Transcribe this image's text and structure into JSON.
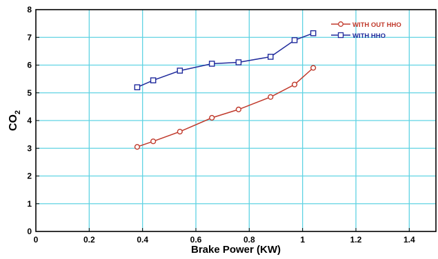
{
  "chart_data": {
    "type": "line",
    "title": "",
    "xlabel": "Brake Power (KW)",
    "ylabel": "CO",
    "ylabel_subscript": "2",
    "xlim": [
      0,
      1.5
    ],
    "ylim": [
      0,
      8
    ],
    "xticks": [
      0,
      0.2,
      0.4,
      0.6,
      0.8,
      1,
      1.2,
      1.4
    ],
    "xtick_labels": [
      "0",
      "0.2",
      "0.4",
      "0.6",
      "0.8",
      "1",
      "1.2",
      "1.4"
    ],
    "yticks": [
      0,
      1,
      2,
      3,
      4,
      5,
      6,
      7,
      8
    ],
    "ytick_labels": [
      "0",
      "1",
      "2",
      "3",
      "4",
      "5",
      "6",
      "7",
      "8"
    ],
    "grid": true,
    "grid_color": "#5fd3e3",
    "legend_position": "top-right",
    "series": [
      {
        "name": "WITH OUT HHO",
        "color": "#c0392b",
        "marker": "circle",
        "x": [
          0.38,
          0.44,
          0.54,
          0.66,
          0.76,
          0.88,
          0.97,
          1.04
        ],
        "y": [
          3.05,
          3.25,
          3.6,
          4.1,
          4.4,
          4.85,
          5.3,
          5.9
        ]
      },
      {
        "name": "WITH HHO",
        "color": "#1f2a9c",
        "marker": "square",
        "x": [
          0.38,
          0.44,
          0.54,
          0.66,
          0.76,
          0.88,
          0.97,
          1.04
        ],
        "y": [
          5.2,
          5.45,
          5.8,
          6.05,
          6.1,
          6.3,
          6.9,
          7.15
        ]
      }
    ]
  }
}
